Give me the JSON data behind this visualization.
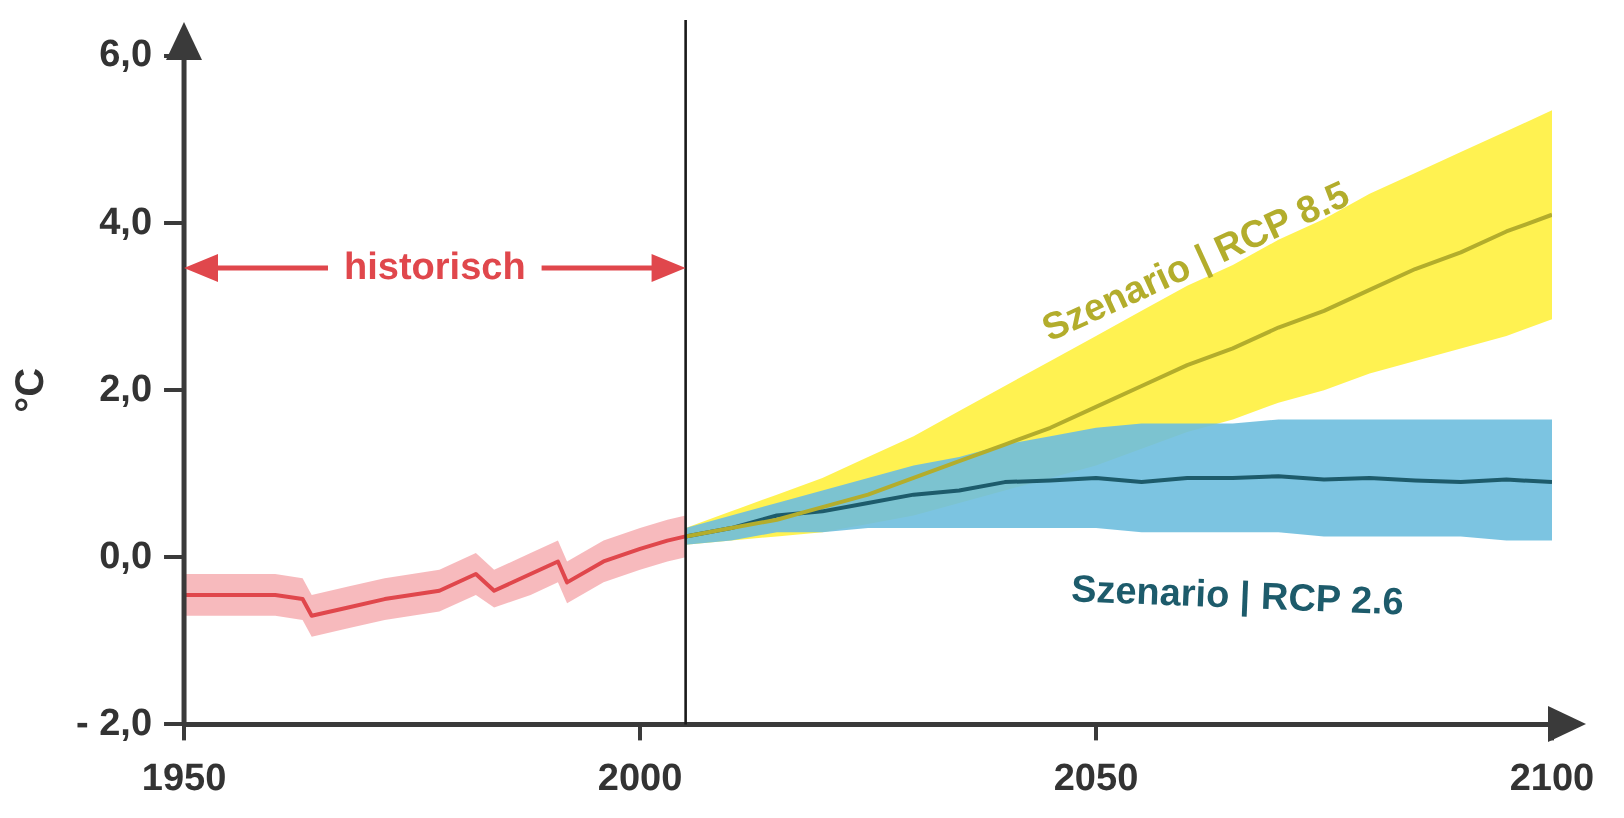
{
  "chart_data": {
    "type": "line",
    "ylabel": "°C",
    "xlim": [
      1950,
      2100
    ],
    "xticks": [
      1950,
      2000,
      2050,
      2100
    ],
    "ylim": [
      -2,
      6
    ],
    "yticks": [
      {
        "value": -2,
        "label": "- 2,0"
      },
      {
        "value": 0,
        "label": "0,0"
      },
      {
        "value": 2,
        "label": "2,0"
      },
      {
        "value": 4,
        "label": "4,0"
      },
      {
        "value": 6,
        "label": "6,0"
      }
    ],
    "grid": false,
    "line_style": "solid",
    "annotations": [
      "historisch"
    ],
    "ref_lines": [
      {
        "axis": "x",
        "value": 2005,
        "color": "#1a1a1a"
      }
    ],
    "series": [
      {
        "color": "#e0474c",
        "x": [
          1950,
          1955,
          1960,
          1963,
          1964,
          1968,
          1972,
          1978,
          1982,
          1984,
          1988,
          1991,
          1992,
          1996,
          2000,
          2003,
          2005
        ],
        "values": [
          -0.45,
          -0.45,
          -0.45,
          -0.5,
          -0.7,
          -0.6,
          -0.5,
          -0.4,
          -0.2,
          -0.4,
          -0.2,
          -0.05,
          -0.3,
          -0.05,
          0.1,
          0.2,
          0.25
        ],
        "lower": [
          -0.7,
          -0.7,
          -0.7,
          -0.75,
          -0.95,
          -0.85,
          -0.75,
          -0.65,
          -0.45,
          -0.6,
          -0.45,
          -0.3,
          -0.55,
          -0.3,
          -0.15,
          -0.05,
          0.0
        ],
        "upper": [
          -0.2,
          -0.2,
          -0.2,
          -0.25,
          -0.45,
          -0.35,
          -0.25,
          -0.15,
          0.05,
          -0.15,
          0.05,
          0.2,
          -0.05,
          0.2,
          0.35,
          0.45,
          0.5
        ]
      },
      {
        "name": "Szenario | RCP 8.5",
        "color": "#b3ad2c",
        "x": [
          2005,
          2010,
          2015,
          2020,
          2025,
          2030,
          2035,
          2040,
          2045,
          2050,
          2055,
          2060,
          2065,
          2070,
          2075,
          2080,
          2085,
          2090,
          2095,
          2100
        ],
        "values": [
          0.25,
          0.35,
          0.45,
          0.6,
          0.75,
          0.95,
          1.15,
          1.35,
          1.55,
          1.8,
          2.05,
          2.3,
          2.5,
          2.75,
          2.95,
          3.2,
          3.45,
          3.65,
          3.9,
          4.1
        ],
        "lower": [
          0.15,
          0.2,
          0.25,
          0.3,
          0.4,
          0.5,
          0.65,
          0.8,
          0.95,
          1.1,
          1.3,
          1.5,
          1.65,
          1.85,
          2.0,
          2.2,
          2.35,
          2.5,
          2.65,
          2.85
        ],
        "upper": [
          0.35,
          0.55,
          0.75,
          0.95,
          1.2,
          1.45,
          1.75,
          2.05,
          2.35,
          2.65,
          2.95,
          3.25,
          3.5,
          3.8,
          4.05,
          4.35,
          4.6,
          4.85,
          5.1,
          5.35
        ]
      },
      {
        "name": "Szenario | RCP 2.6",
        "color": "#1d5b6b",
        "x": [
          2005,
          2010,
          2015,
          2020,
          2025,
          2030,
          2035,
          2040,
          2045,
          2050,
          2055,
          2060,
          2065,
          2070,
          2075,
          2080,
          2085,
          2090,
          2095,
          2100
        ],
        "values": [
          0.25,
          0.35,
          0.5,
          0.55,
          0.65,
          0.75,
          0.8,
          0.9,
          0.92,
          0.95,
          0.9,
          0.95,
          0.95,
          0.97,
          0.93,
          0.95,
          0.92,
          0.9,
          0.93,
          0.9
        ],
        "lower": [
          0.15,
          0.2,
          0.3,
          0.3,
          0.35,
          0.35,
          0.35,
          0.35,
          0.35,
          0.35,
          0.3,
          0.3,
          0.3,
          0.3,
          0.25,
          0.25,
          0.25,
          0.25,
          0.2,
          0.2
        ],
        "upper": [
          0.35,
          0.5,
          0.65,
          0.8,
          0.95,
          1.1,
          1.2,
          1.35,
          1.45,
          1.55,
          1.6,
          1.6,
          1.6,
          1.65,
          1.65,
          1.65,
          1.65,
          1.65,
          1.65,
          1.65
        ]
      }
    ]
  }
}
